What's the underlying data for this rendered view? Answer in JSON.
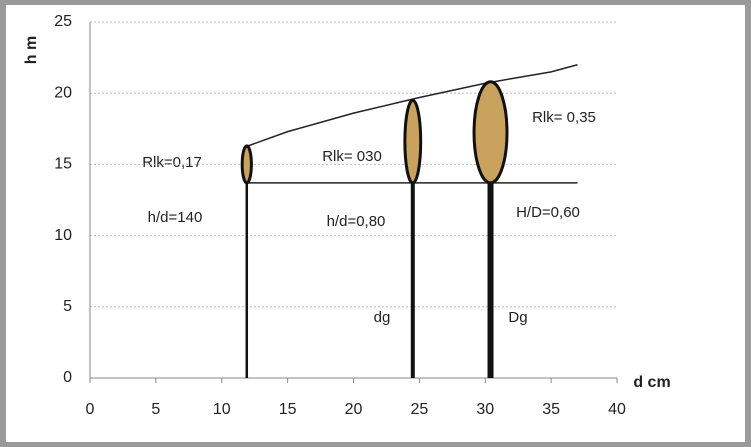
{
  "chart_data": {
    "type": "tree-profile",
    "x_label": "d cm",
    "y_label": "h m",
    "xlim": [
      0,
      40
    ],
    "xticks": [
      0,
      5,
      10,
      15,
      20,
      25,
      30,
      35,
      40
    ],
    "ylim": [
      0,
      25
    ],
    "yticks": [
      0,
      5,
      10,
      15,
      20,
      25
    ],
    "grid": true,
    "lines": [
      {
        "x": [
          12,
          15,
          20,
          25,
          30,
          35,
          37
        ],
        "values": [
          16.3,
          17.3,
          18.6,
          19.7,
          20.7,
          21.5,
          22
        ]
      },
      {
        "x": [
          12,
          37
        ],
        "values": [
          13.7,
          13.7
        ]
      }
    ],
    "trees": [
      {
        "d": 11.9,
        "h": 16.3,
        "crown_base": 13.7,
        "crown_width": 0.7,
        "color": "#c9a25e"
      },
      {
        "d": 24.5,
        "h": 19.5,
        "crown_base": 13.7,
        "crown_width": 1.2,
        "color": "#c9a25e"
      },
      {
        "d": 30.4,
        "h": 20.8,
        "crown_base": 13.7,
        "crown_width": 2.5,
        "color": "#c9a25e"
      }
    ],
    "annotations": [
      "Rlk=0,17",
      "Rlk= 030",
      "Rlk= 0,35",
      "h/d=140",
      "h/d=0,80",
      "H/D=0,60",
      "dg",
      "Dg"
    ]
  }
}
